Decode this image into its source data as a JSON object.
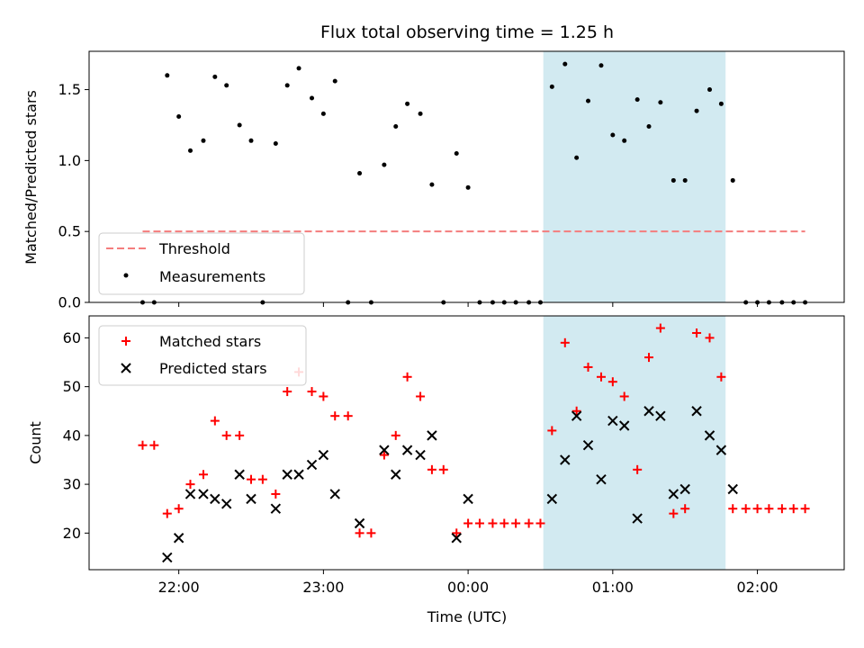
{
  "chart_data": {
    "title": "Flux total observing time = 1.25 h",
    "xlabel": "Time (UTC)",
    "x_ticks": [
      "22:00",
      "23:00",
      "00:00",
      "01:00",
      "02:00"
    ],
    "x_tick_hours": [
      22.0,
      23.0,
      24.0,
      25.0,
      26.0
    ],
    "xlim_hours": [
      21.38,
      26.6
    ],
    "shaded_region_hours": [
      24.52,
      25.78
    ],
    "colors": {
      "threshold": "#f47d7d",
      "measurements": "#000000",
      "matched": "#ff0000",
      "predicted": "#000000",
      "shade": "#add8e6"
    },
    "top_panel": {
      "type": "scatter",
      "ylabel": "Matched/Predicted stars",
      "ylim": [
        0,
        1.77
      ],
      "y_ticks": [
        0.0,
        0.5,
        1.0,
        1.5
      ],
      "y_tick_labels": [
        "0.0",
        "0.5",
        "1.0",
        "1.5"
      ],
      "threshold": {
        "name": "Threshold",
        "value": 0.5,
        "x_start": 21.75,
        "x_end": 26.33
      },
      "measurements_name": "Measurements",
      "legend": "lower-left",
      "measurements": [
        [
          21.75,
          0.0
        ],
        [
          21.83,
          0.0
        ],
        [
          21.92,
          1.6
        ],
        [
          22.0,
          1.31
        ],
        [
          22.08,
          1.07
        ],
        [
          22.17,
          1.14
        ],
        [
          22.25,
          1.59
        ],
        [
          22.33,
          1.53
        ],
        [
          22.42,
          1.25
        ],
        [
          22.5,
          1.14
        ],
        [
          22.58,
          0.0
        ],
        [
          22.67,
          1.12
        ],
        [
          22.75,
          1.53
        ],
        [
          22.83,
          1.65
        ],
        [
          22.92,
          1.44
        ],
        [
          23.0,
          1.33
        ],
        [
          23.08,
          1.56
        ],
        [
          23.17,
          0.0
        ],
        [
          23.25,
          0.91
        ],
        [
          23.33,
          0.0
        ],
        [
          23.42,
          0.97
        ],
        [
          23.5,
          1.24
        ],
        [
          23.58,
          1.4
        ],
        [
          23.67,
          1.33
        ],
        [
          23.75,
          0.83
        ],
        [
          23.83,
          0.0
        ],
        [
          23.92,
          1.05
        ],
        [
          24.0,
          0.81
        ],
        [
          24.08,
          0.0
        ],
        [
          24.17,
          0.0
        ],
        [
          24.25,
          0.0
        ],
        [
          24.33,
          0.0
        ],
        [
          24.42,
          0.0
        ],
        [
          24.5,
          0.0
        ],
        [
          24.58,
          1.52
        ],
        [
          24.67,
          1.68
        ],
        [
          24.75,
          1.02
        ],
        [
          24.83,
          1.42
        ],
        [
          24.92,
          1.67
        ],
        [
          25.0,
          1.18
        ],
        [
          25.08,
          1.14
        ],
        [
          25.17,
          1.43
        ],
        [
          25.25,
          1.24
        ],
        [
          25.33,
          1.41
        ],
        [
          25.42,
          0.86
        ],
        [
          25.5,
          0.86
        ],
        [
          25.58,
          1.35
        ],
        [
          25.67,
          1.5
        ],
        [
          25.75,
          1.4
        ],
        [
          25.83,
          0.86
        ],
        [
          25.92,
          0.0
        ],
        [
          26.0,
          0.0
        ],
        [
          26.08,
          0.0
        ],
        [
          26.17,
          0.0
        ],
        [
          26.25,
          0.0
        ],
        [
          26.33,
          0.0
        ]
      ]
    },
    "bottom_panel": {
      "type": "scatter",
      "ylabel": "Count",
      "ylim": [
        12.5,
        64.5
      ],
      "y_ticks": [
        20,
        30,
        40,
        50,
        60
      ],
      "y_tick_labels": [
        "20",
        "30",
        "40",
        "50",
        "60"
      ],
      "legend": "top-left",
      "series": [
        {
          "name": "Matched stars",
          "marker": "plus",
          "points": [
            [
              21.75,
              38
            ],
            [
              21.83,
              38
            ],
            [
              21.92,
              24
            ],
            [
              22.0,
              25
            ],
            [
              22.08,
              30
            ],
            [
              22.17,
              32
            ],
            [
              22.25,
              43
            ],
            [
              22.33,
              40
            ],
            [
              22.42,
              40
            ],
            [
              22.5,
              31
            ],
            [
              22.58,
              31
            ],
            [
              22.67,
              28
            ],
            [
              22.75,
              49
            ],
            [
              22.83,
              53
            ],
            [
              22.92,
              49
            ],
            [
              23.0,
              48
            ],
            [
              23.08,
              44
            ],
            [
              23.17,
              44
            ],
            [
              23.25,
              20
            ],
            [
              23.33,
              20
            ],
            [
              23.42,
              36
            ],
            [
              23.5,
              40
            ],
            [
              23.58,
              52
            ],
            [
              23.67,
              48
            ],
            [
              23.75,
              33
            ],
            [
              23.83,
              33
            ],
            [
              23.92,
              20
            ],
            [
              24.0,
              22
            ],
            [
              24.08,
              22
            ],
            [
              24.17,
              22
            ],
            [
              24.25,
              22
            ],
            [
              24.33,
              22
            ],
            [
              24.42,
              22
            ],
            [
              24.5,
              22
            ],
            [
              24.58,
              41
            ],
            [
              24.67,
              59
            ],
            [
              24.75,
              45
            ],
            [
              24.83,
              54
            ],
            [
              24.92,
              52
            ],
            [
              25.0,
              51
            ],
            [
              25.08,
              48
            ],
            [
              25.17,
              33
            ],
            [
              25.25,
              56
            ],
            [
              25.33,
              62
            ],
            [
              25.42,
              24
            ],
            [
              25.5,
              25
            ],
            [
              25.58,
              61
            ],
            [
              25.67,
              60
            ],
            [
              25.75,
              52
            ],
            [
              25.83,
              25
            ],
            [
              25.92,
              25
            ],
            [
              26.0,
              25
            ],
            [
              26.08,
              25
            ],
            [
              26.17,
              25
            ],
            [
              26.25,
              25
            ],
            [
              26.33,
              25
            ]
          ]
        },
        {
          "name": "Predicted stars",
          "marker": "x",
          "points": [
            [
              21.92,
              15
            ],
            [
              22.0,
              19
            ],
            [
              22.08,
              28
            ],
            [
              22.17,
              28
            ],
            [
              22.25,
              27
            ],
            [
              22.33,
              26
            ],
            [
              22.42,
              32
            ],
            [
              22.5,
              27
            ],
            [
              22.67,
              25
            ],
            [
              22.75,
              32
            ],
            [
              22.83,
              32
            ],
            [
              22.92,
              34
            ],
            [
              23.0,
              36
            ],
            [
              23.08,
              28
            ],
            [
              23.25,
              22
            ],
            [
              23.42,
              37
            ],
            [
              23.5,
              32
            ],
            [
              23.58,
              37
            ],
            [
              23.67,
              36
            ],
            [
              23.75,
              40
            ],
            [
              23.92,
              19
            ],
            [
              24.0,
              27
            ],
            [
              24.58,
              27
            ],
            [
              24.67,
              35
            ],
            [
              24.75,
              44
            ],
            [
              24.83,
              38
            ],
            [
              24.92,
              31
            ],
            [
              25.0,
              43
            ],
            [
              25.08,
              42
            ],
            [
              25.17,
              23
            ],
            [
              25.25,
              45
            ],
            [
              25.33,
              44
            ],
            [
              25.42,
              28
            ],
            [
              25.5,
              29
            ],
            [
              25.58,
              45
            ],
            [
              25.67,
              40
            ],
            [
              25.75,
              37
            ],
            [
              25.83,
              29
            ]
          ]
        }
      ]
    }
  }
}
